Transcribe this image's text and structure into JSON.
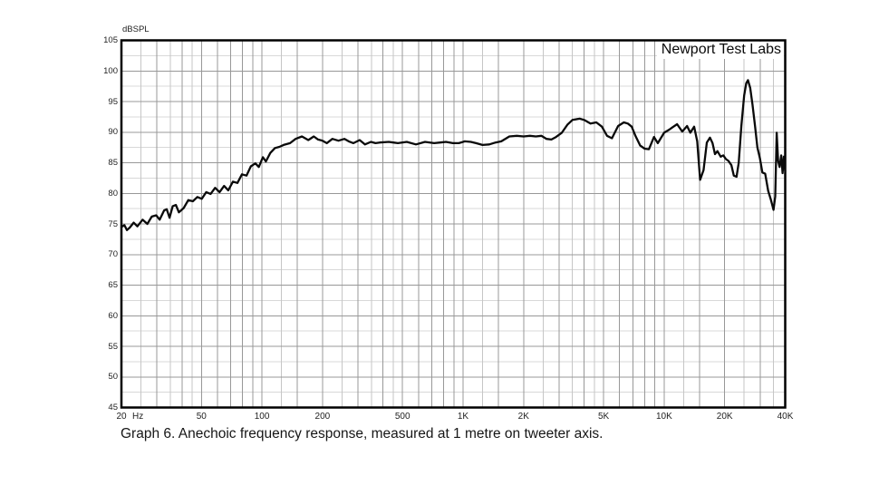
{
  "caption": "Graph 6. Anechoic frequency response, measured at 1 metre on tweeter axis.",
  "chart_data": {
    "type": "line",
    "title": "Anechoic frequency response",
    "watermark": "Newport Test Labs",
    "ylabel": "dBSPL",
    "x_unit": "Hz",
    "x_scale": "log",
    "xlim": [
      20,
      40000
    ],
    "ylim": [
      45,
      105
    ],
    "grid": true,
    "y_major_step": 5,
    "y_minor_step": 2.5,
    "y_ticks": [
      105,
      100,
      95,
      90,
      85,
      80,
      75,
      70,
      65,
      60,
      55,
      50,
      45
    ],
    "x_ticks": [
      {
        "f": 20,
        "label": "20"
      },
      {
        "f": 50,
        "label": "50"
      },
      {
        "f": 100,
        "label": "100"
      },
      {
        "f": 200,
        "label": "200"
      },
      {
        "f": 500,
        "label": "500"
      },
      {
        "f": 1000,
        "label": "1K"
      },
      {
        "f": 2000,
        "label": "2K"
      },
      {
        "f": 5000,
        "label": "5K"
      },
      {
        "f": 10000,
        "label": "10K"
      },
      {
        "f": 20000,
        "label": "20K"
      },
      {
        "f": 40000,
        "label": "40K"
      }
    ],
    "x_grid_major": [
      30,
      40,
      50,
      60,
      70,
      80,
      90,
      100,
      150,
      200,
      300,
      400,
      500,
      600,
      700,
      800,
      900,
      1000,
      1500,
      2000,
      3000,
      4000,
      5000,
      6000,
      7000,
      8000,
      9000,
      10000,
      15000,
      20000,
      30000,
      40000
    ],
    "x_grid_minor": [
      25,
      35,
      45,
      125,
      250,
      350,
      450,
      1250,
      2500,
      3500,
      4500,
      12500,
      25000,
      35000
    ],
    "colors": {
      "curve": "#0a0a0a",
      "border": "#000000",
      "grid_major": "#989898",
      "grid_minor_h": "#d8d8d8",
      "grid_minor_v": "#c6c6c6"
    },
    "series": [
      {
        "name": "SPL at 1 metre on tweeter axis",
        "points": [
          [
            20,
            74.5
          ],
          [
            20.7,
            74.8
          ],
          [
            21.3,
            74.0
          ],
          [
            22,
            74.4
          ],
          [
            23,
            75.2
          ],
          [
            24,
            74.6
          ],
          [
            25.5,
            75.7
          ],
          [
            26.9,
            75.0
          ],
          [
            28.3,
            76.2
          ],
          [
            29.8,
            76.4
          ],
          [
            31,
            75.7
          ],
          [
            32.6,
            77.2
          ],
          [
            33.6,
            77.4
          ],
          [
            34.7,
            76.0
          ],
          [
            36,
            77.9
          ],
          [
            37.3,
            78.1
          ],
          [
            38.6,
            76.9
          ],
          [
            40.8,
            77.6
          ],
          [
            43,
            78.9
          ],
          [
            45.3,
            78.7
          ],
          [
            47.7,
            79.4
          ],
          [
            50.2,
            79.1
          ],
          [
            52.8,
            80.2
          ],
          [
            55.5,
            79.9
          ],
          [
            58.5,
            80.9
          ],
          [
            61.5,
            80.2
          ],
          [
            64.8,
            81.2
          ],
          [
            68,
            80.5
          ],
          [
            71.7,
            81.9
          ],
          [
            75.5,
            81.7
          ],
          [
            79.5,
            83.1
          ],
          [
            83.7,
            82.9
          ],
          [
            88,
            84.4
          ],
          [
            92.7,
            84.9
          ],
          [
            96.4,
            84.3
          ],
          [
            101,
            85.9
          ],
          [
            104.6,
            85.2
          ],
          [
            110,
            86.6
          ],
          [
            116,
            87.4
          ],
          [
            122,
            87.6
          ],
          [
            128,
            87.9
          ],
          [
            138,
            88.2
          ],
          [
            147,
            88.9
          ],
          [
            158,
            89.3
          ],
          [
            170,
            88.7
          ],
          [
            181,
            89.3
          ],
          [
            190,
            88.8
          ],
          [
            200,
            88.6
          ],
          [
            210,
            88.2
          ],
          [
            224,
            88.9
          ],
          [
            240,
            88.6
          ],
          [
            257,
            88.9
          ],
          [
            270,
            88.5
          ],
          [
            285,
            88.2
          ],
          [
            306,
            88.7
          ],
          [
            325,
            88.0
          ],
          [
            348,
            88.4
          ],
          [
            367,
            88.2
          ],
          [
            385,
            88.3
          ],
          [
            427,
            88.4
          ],
          [
            450,
            88.3
          ],
          [
            474,
            88.2
          ],
          [
            525,
            88.4
          ],
          [
            583,
            88.0
          ],
          [
            647,
            88.4
          ],
          [
            718,
            88.2
          ],
          [
            770,
            88.3
          ],
          [
            822,
            88.4
          ],
          [
            890,
            88.2
          ],
          [
            953,
            88.2
          ],
          [
            1020,
            88.5
          ],
          [
            1093,
            88.4
          ],
          [
            1160,
            88.2
          ],
          [
            1250,
            87.9
          ],
          [
            1350,
            88.0
          ],
          [
            1450,
            88.3
          ],
          [
            1550,
            88.5
          ],
          [
            1700,
            89.3
          ],
          [
            1850,
            89.4
          ],
          [
            2000,
            89.3
          ],
          [
            2150,
            89.4
          ],
          [
            2300,
            89.3
          ],
          [
            2450,
            89.4
          ],
          [
            2600,
            88.9
          ],
          [
            2750,
            88.8
          ],
          [
            2900,
            89.2
          ],
          [
            3100,
            89.9
          ],
          [
            3300,
            91.2
          ],
          [
            3500,
            92.0
          ],
          [
            3800,
            92.2
          ],
          [
            4000,
            92.0
          ],
          [
            4300,
            91.4
          ],
          [
            4600,
            91.6
          ],
          [
            4900,
            90.9
          ],
          [
            5200,
            89.4
          ],
          [
            5500,
            89.0
          ],
          [
            5900,
            91.0
          ],
          [
            6300,
            91.6
          ],
          [
            6600,
            91.4
          ],
          [
            6900,
            90.9
          ],
          [
            7200,
            89.4
          ],
          [
            7600,
            87.8
          ],
          [
            8000,
            87.3
          ],
          [
            8400,
            87.2
          ],
          [
            8900,
            89.2
          ],
          [
            9300,
            88.2
          ],
          [
            10000,
            89.9
          ],
          [
            10600,
            90.4
          ],
          [
            11000,
            90.8
          ],
          [
            11600,
            91.3
          ],
          [
            12300,
            90.1
          ],
          [
            13000,
            91.0
          ],
          [
            13500,
            89.9
          ],
          [
            14100,
            90.9
          ],
          [
            14600,
            88.5
          ],
          [
            15100,
            82.2
          ],
          [
            15700,
            83.8
          ],
          [
            16300,
            88.3
          ],
          [
            16900,
            89.1
          ],
          [
            17400,
            88.2
          ],
          [
            17900,
            86.4
          ],
          [
            18400,
            86.9
          ],
          [
            19100,
            86.0
          ],
          [
            19700,
            86.2
          ],
          [
            20300,
            85.6
          ],
          [
            20900,
            85.3
          ],
          [
            21600,
            84.6
          ],
          [
            22200,
            82.9
          ],
          [
            22900,
            82.7
          ],
          [
            23500,
            85.0
          ],
          [
            24200,
            91.0
          ],
          [
            25000,
            96.0
          ],
          [
            25600,
            98.0
          ],
          [
            26100,
            98.5
          ],
          [
            26800,
            97.2
          ],
          [
            27500,
            94.5
          ],
          [
            28300,
            91.0
          ],
          [
            29100,
            87.5
          ],
          [
            29900,
            85.8
          ],
          [
            30800,
            83.4
          ],
          [
            31800,
            83.2
          ],
          [
            32900,
            80.4
          ],
          [
            33900,
            79.0
          ],
          [
            35000,
            77.3
          ],
          [
            35700,
            79.5
          ],
          [
            36300,
            89.9
          ],
          [
            36900,
            85.3
          ],
          [
            37500,
            84.3
          ],
          [
            38200,
            86.2
          ],
          [
            38800,
            83.3
          ],
          [
            39400,
            86.0
          ],
          [
            40000,
            83.6
          ]
        ]
      }
    ]
  }
}
